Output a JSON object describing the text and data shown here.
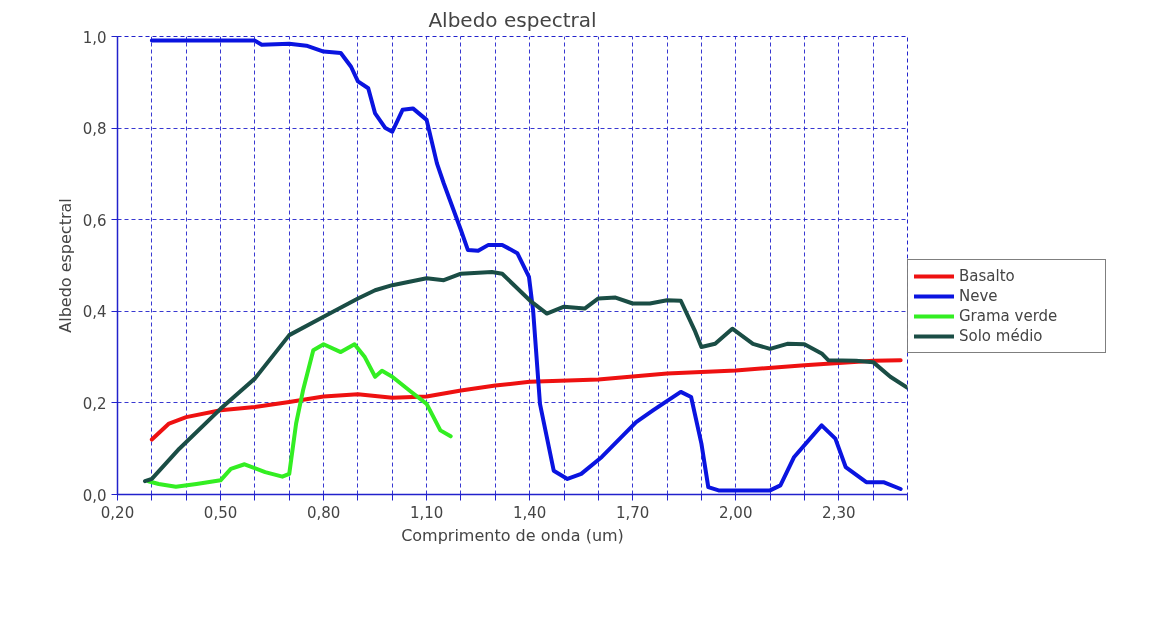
{
  "chart_data": {
    "type": "line",
    "title": "Albedo espectral",
    "xlabel": "Comprimento de onda (um)",
    "ylabel": "Albedo espectral",
    "xlim": [
      0.2,
      2.5
    ],
    "ylim": [
      0.0,
      1.0
    ],
    "xticks": [
      {
        "value": 0.2,
        "label": "0,20"
      },
      {
        "value": 0.3,
        "label": null
      },
      {
        "value": 0.4,
        "label": null
      },
      {
        "value": 0.5,
        "label": "0,50"
      },
      {
        "value": 0.6,
        "label": null
      },
      {
        "value": 0.7,
        "label": null
      },
      {
        "value": 0.8,
        "label": "0,80"
      },
      {
        "value": 0.9,
        "label": null
      },
      {
        "value": 1.0,
        "label": null
      },
      {
        "value": 1.1,
        "label": "1,10"
      },
      {
        "value": 1.2,
        "label": null
      },
      {
        "value": 1.3,
        "label": null
      },
      {
        "value": 1.4,
        "label": "1,40"
      },
      {
        "value": 1.5,
        "label": null
      },
      {
        "value": 1.6,
        "label": null
      },
      {
        "value": 1.7,
        "label": "1,70"
      },
      {
        "value": 1.8,
        "label": null
      },
      {
        "value": 1.9,
        "label": null
      },
      {
        "value": 2.0,
        "label": "2,00"
      },
      {
        "value": 2.1,
        "label": null
      },
      {
        "value": 2.2,
        "label": null
      },
      {
        "value": 2.3,
        "label": "2,30"
      },
      {
        "value": 2.4,
        "label": null
      },
      {
        "value": 2.5,
        "label": null
      }
    ],
    "yticks": [
      {
        "value": 0.0,
        "label": "0,0"
      },
      {
        "value": 0.2,
        "label": "0,2"
      },
      {
        "value": 0.4,
        "label": "0,4"
      },
      {
        "value": 0.6,
        "label": "0,6"
      },
      {
        "value": 0.8,
        "label": "0,8"
      },
      {
        "value": 1.0,
        "label": "1,0"
      }
    ],
    "grid": true,
    "legend": "right",
    "marker": "none",
    "line_style": "solid",
    "series": [
      {
        "name": "Basalto",
        "color": "#ee1111",
        "x": [
          0.3,
          0.35,
          0.4,
          0.5,
          0.6,
          0.7,
          0.8,
          0.9,
          1.0,
          1.1,
          1.2,
          1.3,
          1.4,
          1.6,
          1.8,
          2.0,
          2.2,
          2.4,
          2.48
        ],
        "values": [
          0.12,
          0.155,
          0.169,
          0.184,
          0.191,
          0.202,
          0.214,
          0.219,
          0.211,
          0.214,
          0.227,
          0.238,
          0.246,
          0.251,
          0.264,
          0.271,
          0.282,
          0.292,
          0.293
        ]
      },
      {
        "name": "Neve",
        "color": "#0a14e0",
        "x": [
          0.3,
          0.6,
          0.62,
          0.7,
          0.75,
          0.8,
          0.85,
          0.88,
          0.9,
          0.93,
          0.95,
          0.98,
          1.0,
          1.03,
          1.06,
          1.1,
          1.13,
          1.15,
          1.2,
          1.22,
          1.25,
          1.28,
          1.32,
          1.364,
          1.398,
          1.41,
          1.43,
          1.47,
          1.51,
          1.55,
          1.61,
          1.71,
          1.76,
          1.84,
          1.87,
          1.9,
          1.92,
          1.95,
          2.1,
          2.13,
          2.17,
          2.25,
          2.29,
          2.32,
          2.38,
          2.43,
          2.48
        ],
        "values": [
          0.991,
          0.991,
          0.982,
          0.984,
          0.98,
          0.967,
          0.964,
          0.934,
          0.902,
          0.887,
          0.832,
          0.8,
          0.792,
          0.84,
          0.843,
          0.818,
          0.723,
          0.679,
          0.577,
          0.534,
          0.532,
          0.545,
          0.545,
          0.527,
          0.475,
          0.402,
          0.198,
          0.052,
          0.034,
          0.045,
          0.082,
          0.158,
          0.184,
          0.224,
          0.213,
          0.111,
          0.016,
          0.009,
          0.009,
          0.02,
          0.082,
          0.151,
          0.122,
          0.06,
          0.027,
          0.027,
          0.012
        ]
      },
      {
        "name": "Grama verde",
        "color": "#33ee22",
        "x": [
          0.29,
          0.32,
          0.37,
          0.43,
          0.5,
          0.53,
          0.57,
          0.63,
          0.68,
          0.7,
          0.72,
          0.74,
          0.77,
          0.8,
          0.85,
          0.89,
          0.92,
          0.95,
          0.97,
          1.0,
          1.05,
          1.1,
          1.14,
          1.17
        ],
        "values": [
          0.029,
          0.023,
          0.017,
          0.023,
          0.031,
          0.056,
          0.066,
          0.049,
          0.039,
          0.045,
          0.155,
          0.227,
          0.315,
          0.328,
          0.311,
          0.328,
          0.3,
          0.257,
          0.27,
          0.257,
          0.227,
          0.198,
          0.14,
          0.127
        ]
      },
      {
        "name": "Solo médio",
        "color": "#1a4d45",
        "x": [
          0.28,
          0.3,
          0.38,
          0.5,
          0.6,
          0.7,
          0.8,
          0.9,
          0.95,
          1.0,
          1.1,
          1.15,
          1.2,
          1.29,
          1.32,
          1.36,
          1.4,
          1.45,
          1.5,
          1.56,
          1.6,
          1.65,
          1.7,
          1.75,
          1.8,
          1.84,
          1.88,
          1.9,
          1.94,
          1.99,
          2.05,
          2.1,
          2.15,
          2.2,
          2.25,
          2.27,
          2.35,
          2.4,
          2.45,
          2.5
        ],
        "values": [
          0.029,
          0.034,
          0.1,
          0.187,
          0.253,
          0.348,
          0.388,
          0.428,
          0.446,
          0.457,
          0.472,
          0.468,
          0.482,
          0.486,
          0.482,
          0.453,
          0.424,
          0.395,
          0.41,
          0.406,
          0.428,
          0.43,
          0.417,
          0.417,
          0.424,
          0.423,
          0.359,
          0.322,
          0.329,
          0.362,
          0.329,
          0.318,
          0.329,
          0.328,
          0.308,
          0.293,
          0.292,
          0.289,
          0.257,
          0.233
        ]
      }
    ]
  }
}
